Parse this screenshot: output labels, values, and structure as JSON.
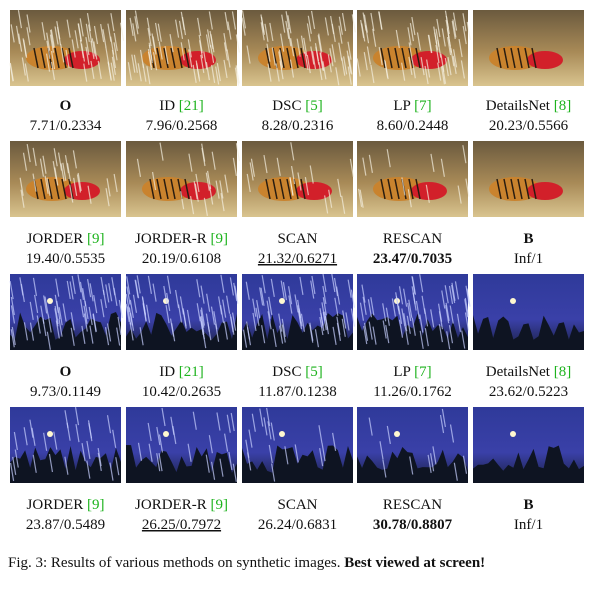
{
  "groups": [
    {
      "cells": [
        {
          "method": "O",
          "score": "7.71/0.2334",
          "bold_name": true
        },
        {
          "method": "ID",
          "ref": "[21]",
          "score": "7.96/0.2568"
        },
        {
          "method": "DSC",
          "ref": "[5]",
          "score": "8.28/0.2316"
        },
        {
          "method": "LP",
          "ref": "[7]",
          "score": "8.60/0.2448"
        },
        {
          "method": "DetailsNet",
          "ref": "[8]",
          "score": "20.23/0.5566"
        }
      ]
    },
    {
      "cells": [
        {
          "method": "JORDER",
          "ref": "[9]",
          "score": "19.40/0.5535"
        },
        {
          "method": "JORDER-R",
          "ref": "[9]",
          "score": "20.19/0.6108"
        },
        {
          "method": "SCAN",
          "score": "21.32/0.6271",
          "score_style": "underline"
        },
        {
          "method": "RESCAN",
          "score": "23.47/0.7035",
          "score_style": "bold"
        },
        {
          "method": "B",
          "score": "Inf/1",
          "bold_name": true
        }
      ]
    },
    {
      "cells": [
        {
          "method": "O",
          "score": "9.73/0.1149",
          "bold_name": true
        },
        {
          "method": "ID",
          "ref": "[21]",
          "score": "10.42/0.2635"
        },
        {
          "method": "DSC",
          "ref": "[5]",
          "score": "11.87/0.1238"
        },
        {
          "method": "LP",
          "ref": "[7]",
          "score": "11.26/0.1762"
        },
        {
          "method": "DetailsNet",
          "ref": "[8]",
          "score": "23.62/0.5223"
        }
      ]
    },
    {
      "cells": [
        {
          "method": "JORDER",
          "ref": "[9]",
          "score": "23.87/0.5489"
        },
        {
          "method": "JORDER-R",
          "ref": "[9]",
          "score": "26.25/0.7972",
          "score_style": "underline"
        },
        {
          "method": "SCAN",
          "score": "26.24/0.6831"
        },
        {
          "method": "RESCAN",
          "score": "30.78/0.8807",
          "score_style": "bold"
        },
        {
          "method": "B",
          "score": "Inf/1",
          "bold_name": true
        }
      ]
    }
  ],
  "caption": {
    "text": "Fig. 3: Results of various methods on synthetic images.",
    "emphasis": "Best viewed at screen!"
  }
}
